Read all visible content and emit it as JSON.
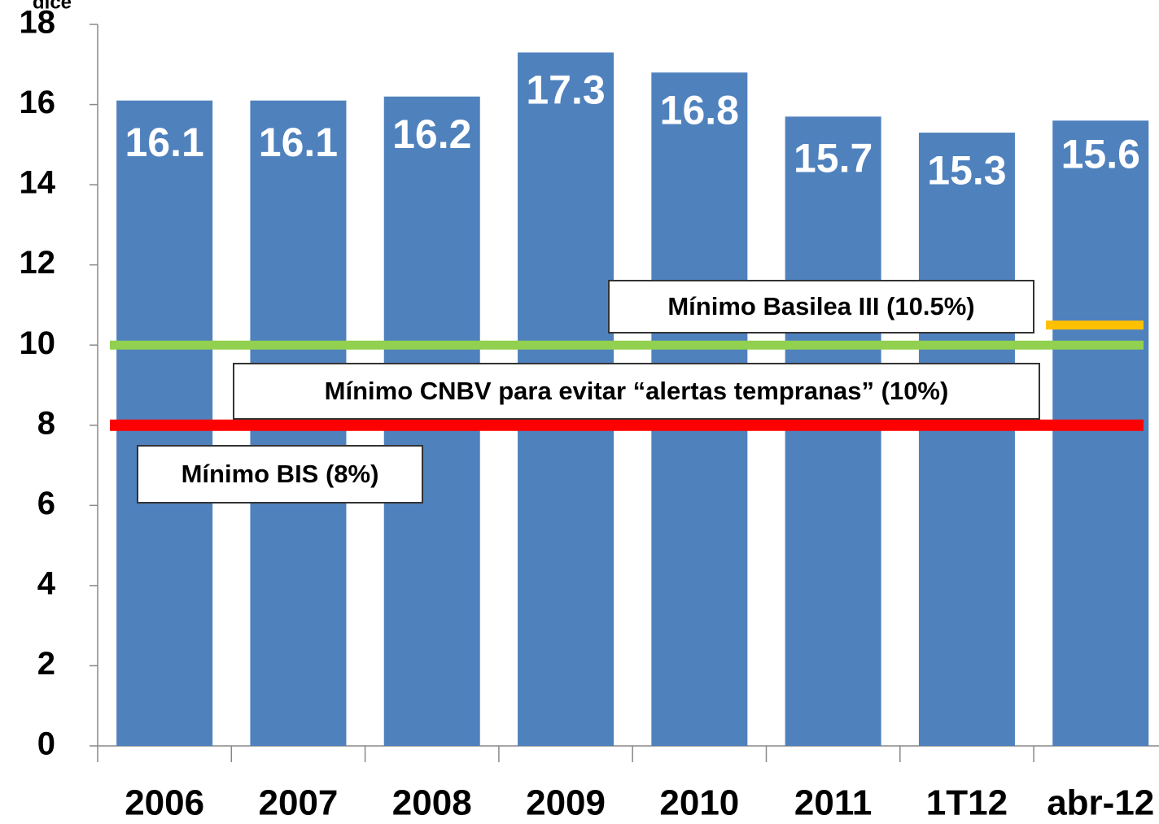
{
  "chart_data": {
    "type": "bar",
    "y_label": "dice",
    "categories": [
      "2006",
      "2007",
      "2008",
      "2009",
      "2010",
      "2011",
      "1T12",
      "abr-12"
    ],
    "values": [
      16.1,
      16.1,
      16.2,
      17.3,
      16.8,
      15.7,
      15.3,
      15.6
    ],
    "color": "#4f81bd",
    "ylim": [
      0,
      18
    ],
    "yticks": [
      0,
      2,
      4,
      6,
      8,
      10,
      12,
      14,
      16,
      18
    ],
    "grid": false,
    "reference_lines": [
      {
        "label": "Mínimo Basilea III (10.5%)",
        "value": 10.5,
        "color": "#ffc000"
      },
      {
        "label": "Mínimo CNBV para evitar “alertas tempranas” (10%)",
        "value": 10,
        "color": "#92d050"
      },
      {
        "label": "Mínimo BIS (8%)",
        "value": 8,
        "color": "#ff0000"
      }
    ]
  }
}
